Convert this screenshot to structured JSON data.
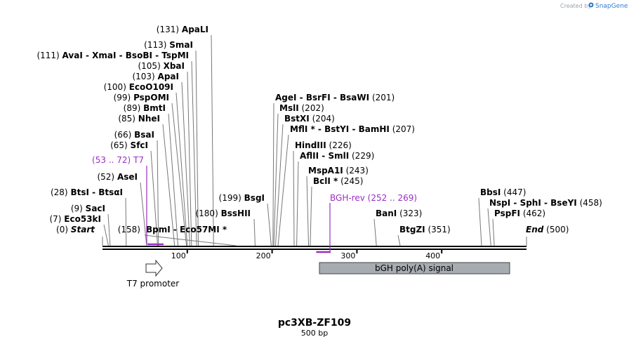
{
  "watermark": {
    "prefix": "Created by",
    "brand": "SnapGene"
  },
  "plasmid": {
    "name": "pc3XB-ZF109",
    "length_label": "500 bp",
    "length": 500
  },
  "axis": {
    "ticks": [
      {
        "pos": 100,
        "label": "100"
      },
      {
        "pos": 200,
        "label": "200"
      },
      {
        "pos": 300,
        "label": "300"
      },
      {
        "pos": 400,
        "label": "400"
      }
    ]
  },
  "sites": [
    {
      "pos": 0,
      "label": "Start",
      "num": "(0)",
      "end": true
    },
    {
      "pos": 7,
      "label": "Eco53kI",
      "num": "(7)"
    },
    {
      "pos": 9,
      "label": "SacI",
      "num": "(9)"
    },
    {
      "pos": 28,
      "label": "BtsI  -  BtsαI",
      "num": "(28)"
    },
    {
      "pos": 52,
      "label": "AseI",
      "num": "(52)"
    },
    {
      "pos": 65,
      "label": "SfcI",
      "num": "(65)"
    },
    {
      "pos": 66,
      "label": "BsaI",
      "num": "(66)"
    },
    {
      "pos": 85,
      "label": "NheI",
      "num": "(85)"
    },
    {
      "pos": 89,
      "label": "BmtI",
      "num": "(89)"
    },
    {
      "pos": 99,
      "label": "PspOMI",
      "num": "(99)"
    },
    {
      "pos": 100,
      "label": "EcoO109I",
      "num": "(100)"
    },
    {
      "pos": 103,
      "label": "ApaI",
      "num": "(103)"
    },
    {
      "pos": 105,
      "label": "XbaI",
      "num": "(105)"
    },
    {
      "pos": 111,
      "label": "AvaI  -  XmaI  -  BsoBI  -  TspMI",
      "num": "(111)"
    },
    {
      "pos": 113,
      "label": "SmaI",
      "num": "(113)"
    },
    {
      "pos": 131,
      "label": "ApaLI",
      "num": "(131)"
    },
    {
      "pos": 158,
      "label": "BpmI  -  Eco57MI *",
      "num": "(158)"
    },
    {
      "pos": 180,
      "label": "BssHII",
      "num": "(180)"
    },
    {
      "pos": 199,
      "label": "BsgI",
      "num": "(199)"
    },
    {
      "pos": 201,
      "label": "AgeI  -  BsrFI  -  BsaWI",
      "num": "(201)"
    },
    {
      "pos": 202,
      "label": "MslI",
      "num": "(202)"
    },
    {
      "pos": 204,
      "label": "BstXI",
      "num": "(204)"
    },
    {
      "pos": 207,
      "label": "MflI *  -  BstYI  -  BamHI",
      "num": "(207)"
    },
    {
      "pos": 226,
      "label": "HindIII",
      "num": "(226)"
    },
    {
      "pos": 229,
      "label": "AflII  -  SmlI",
      "num": "(229)"
    },
    {
      "pos": 243,
      "label": "MspA1I",
      "num": "(243)"
    },
    {
      "pos": 245,
      "label": "BclI *",
      "num": "(245)"
    },
    {
      "pos": 323,
      "label": "BanI",
      "num": "(323)"
    },
    {
      "pos": 351,
      "label": "BtgZI",
      "num": "(351)"
    },
    {
      "pos": 447,
      "label": "BbsI",
      "num": "(447)"
    },
    {
      "pos": 458,
      "label": "NspI  -  SphI  -  BseYI",
      "num": "(458)"
    },
    {
      "pos": 462,
      "label": "PspFI",
      "num": "(462)"
    },
    {
      "pos": 500,
      "label": "End",
      "num": "(500)",
      "end": true
    }
  ],
  "primers": [
    {
      "name": "T7",
      "range": "(53 .. 72)",
      "start": 53,
      "end": 72
    },
    {
      "name": "BGH-rev",
      "range": "(252 .. 269)",
      "start": 252,
      "end": 269
    }
  ],
  "features": [
    {
      "name": "T7 promoter",
      "type": "promoter",
      "start": 53,
      "end": 72
    },
    {
      "name": "bGH poly(A) signal",
      "type": "polyA_signal",
      "start": 257,
      "end": 481
    }
  ],
  "colors": {
    "primer": "#9a2fc2",
    "polyA_fill": "#a7acb2",
    "watermark_brand": "#2b7bd6"
  }
}
